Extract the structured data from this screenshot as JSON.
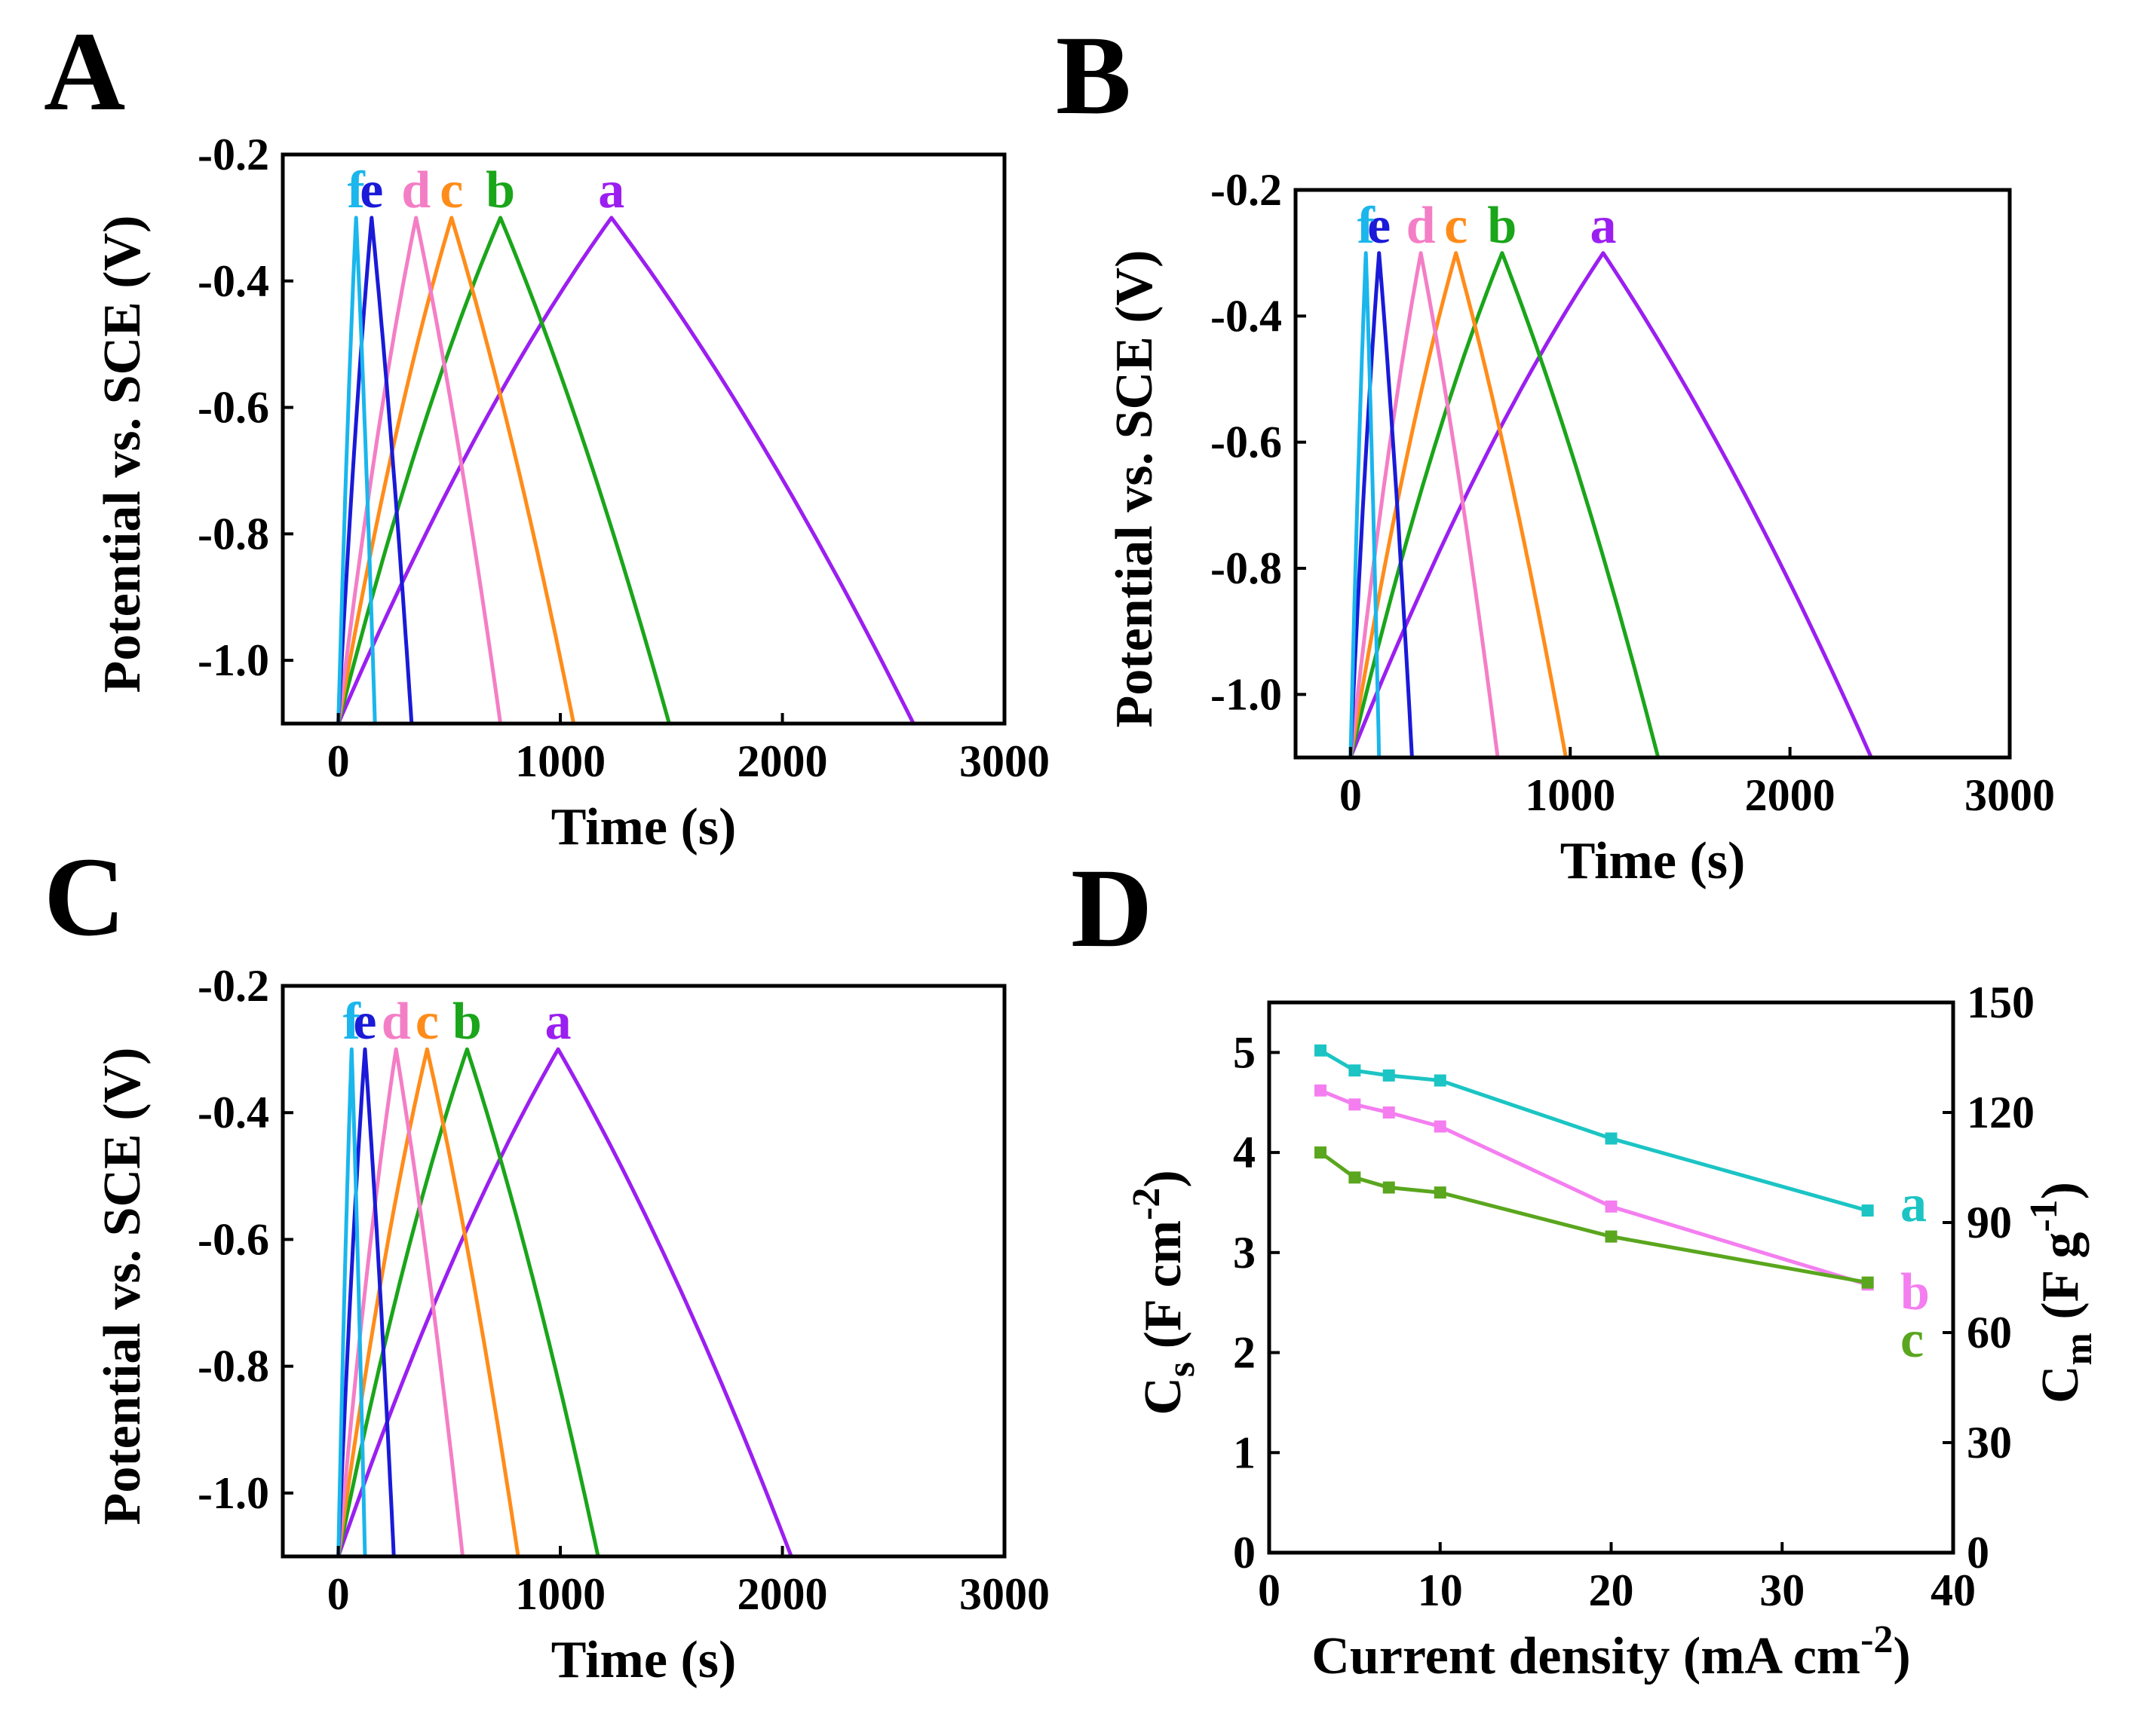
{
  "chart_data": [
    {
      "panel": "A",
      "type": "line",
      "xlabel": "Time (s)",
      "ylabel": "Potential vs. SCE (V)",
      "xlim": [
        -250,
        3000
      ],
      "ylim": [
        -1.1,
        -0.2
      ],
      "xticks": [
        0,
        1000,
        2000,
        3000
      ],
      "xtick_labels": [
        "0",
        "1000",
        "2000",
        "3000"
      ],
      "yticks": [
        -0.2,
        -0.4,
        -0.6,
        -0.8,
        -1.0
      ],
      "ytick_labels": [
        "-0.2",
        "-0.4",
        "-0.6",
        "-0.8",
        "-1.0"
      ],
      "series": [
        {
          "name": "a",
          "color": "#9b1ff0",
          "charge_end": 1230,
          "discharge_end": 2590
        },
        {
          "name": "b",
          "color": "#1aa51a",
          "charge_end": 730,
          "discharge_end": 1490
        },
        {
          "name": "c",
          "color": "#ff8c1a",
          "charge_end": 510,
          "discharge_end": 1060
        },
        {
          "name": "d",
          "color": "#f47ec6",
          "charge_end": 350,
          "discharge_end": 730
        },
        {
          "name": "e",
          "color": "#1a1ad8",
          "charge_end": 150,
          "discharge_end": 330
        },
        {
          "name": "f",
          "color": "#1ab6ec",
          "charge_end": 80,
          "discharge_end": 165
        }
      ]
    },
    {
      "panel": "B",
      "type": "line",
      "xlabel": "Time (s)",
      "ylabel": "Potential vs. SCE (V)",
      "xlim": [
        -250,
        3000
      ],
      "ylim": [
        -1.1,
        -0.2
      ],
      "xticks": [
        0,
        1000,
        2000,
        3000
      ],
      "xtick_labels": [
        "0",
        "1000",
        "2000",
        "3000"
      ],
      "yticks": [
        -0.2,
        -0.4,
        -0.6,
        -0.8,
        -1.0
      ],
      "ytick_labels": [
        "-0.2",
        "-0.4",
        "-0.6",
        "-0.8",
        "-1.0"
      ],
      "series": [
        {
          "name": "a",
          "color": "#9b1ff0",
          "charge_end": 1150,
          "discharge_end": 2370
        },
        {
          "name": "b",
          "color": "#1aa51a",
          "charge_end": 690,
          "discharge_end": 1400
        },
        {
          "name": "c",
          "color": "#ff8c1a",
          "charge_end": 480,
          "discharge_end": 980
        },
        {
          "name": "d",
          "color": "#f47ec6",
          "charge_end": 320,
          "discharge_end": 670
        },
        {
          "name": "e",
          "color": "#1a1ad8",
          "charge_end": 130,
          "discharge_end": 280
        },
        {
          "name": "f",
          "color": "#1ab6ec",
          "charge_end": 70,
          "discharge_end": 130
        }
      ]
    },
    {
      "panel": "C",
      "type": "line",
      "xlabel": "Time (s)",
      "ylabel": "Potential vs. SCE (V)",
      "xlim": [
        -250,
        3000
      ],
      "ylim": [
        -1.1,
        -0.2
      ],
      "xticks": [
        0,
        1000,
        2000,
        3000
      ],
      "xtick_labels": [
        "0",
        "1000",
        "2000",
        "3000"
      ],
      "yticks": [
        -0.2,
        -0.4,
        -0.6,
        -0.8,
        -1.0
      ],
      "ytick_labels": [
        "-0.2",
        "-0.4",
        "-0.6",
        "-0.8",
        "-1.0"
      ],
      "series": [
        {
          "name": "a",
          "color": "#9b1ff0",
          "charge_end": 990,
          "discharge_end": 2040
        },
        {
          "name": "b",
          "color": "#1aa51a",
          "charge_end": 580,
          "discharge_end": 1170
        },
        {
          "name": "c",
          "color": "#ff8c1a",
          "charge_end": 400,
          "discharge_end": 810
        },
        {
          "name": "d",
          "color": "#f47ec6",
          "charge_end": 260,
          "discharge_end": 560
        },
        {
          "name": "e",
          "color": "#1a1ad8",
          "charge_end": 120,
          "discharge_end": 250
        },
        {
          "name": "f",
          "color": "#1ab6ec",
          "charge_end": 60,
          "discharge_end": 120
        }
      ]
    },
    {
      "panel": "D",
      "type": "line",
      "xlabel": "Current density (mA cm",
      "xlabel_sup": "-2",
      "xlabel_end": ")",
      "ylabel_left": {
        "base": "C",
        "sub": "s",
        "rest": " (F cm",
        "sup": "-2",
        "end": ")"
      },
      "ylabel_right": {
        "base": "C",
        "sub": "m",
        "rest": " (F g",
        "sup": "-1",
        "end": ")"
      },
      "xlim": [
        0,
        40
      ],
      "ylim": [
        0,
        5.5
      ],
      "ylim_right": [
        0,
        150
      ],
      "xticks": [
        0,
        10,
        20,
        30,
        40
      ],
      "xtick_labels": [
        "0",
        "10",
        "20",
        "30",
        "40"
      ],
      "yticks": [
        0,
        1,
        2,
        3,
        4,
        5
      ],
      "ytick_labels": [
        "0",
        "1",
        "2",
        "3",
        "4",
        "5"
      ],
      "yticks_right": [
        0,
        30,
        60,
        90,
        120,
        150
      ],
      "ytick_labels_right": [
        "0",
        "30",
        "60",
        "90",
        "120",
        "150"
      ],
      "x": [
        3,
        5,
        7,
        10,
        20,
        35
      ],
      "series": [
        {
          "name": "a",
          "color": "#1cc4c4",
          "values": [
            5.02,
            4.82,
            4.77,
            4.72,
            4.14,
            3.42
          ]
        },
        {
          "name": "b",
          "color": "#f47ef0",
          "values": [
            4.62,
            4.48,
            4.4,
            4.26,
            3.46,
            2.68
          ]
        },
        {
          "name": "c",
          "color": "#5aa61e",
          "values": [
            4.0,
            3.75,
            3.65,
            3.6,
            3.16,
            2.7
          ]
        }
      ]
    }
  ]
}
